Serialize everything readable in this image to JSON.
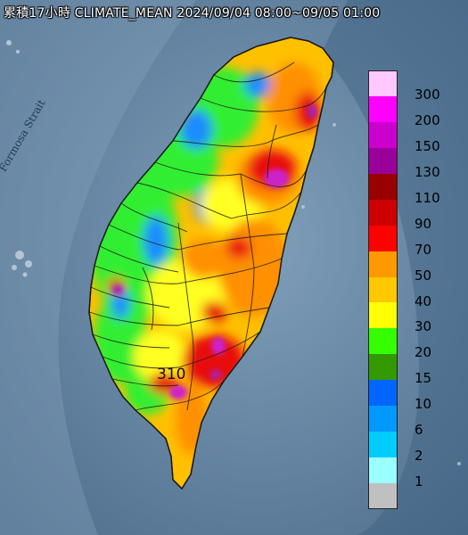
{
  "header": {
    "title": "累積17小時 CLIMATE_MEAN 2024/09/04 08:00~09/05 01:00"
  },
  "map": {
    "strait_label": "Formosa Strait",
    "max_annotation": "310",
    "colors": {
      "sea": "#5f7f9c",
      "land_low": "#3fd84a",
      "land_mid": "#ffc000",
      "land_high": "#ff9a00",
      "peak": "#e01010",
      "extreme": "#cc22cc"
    }
  },
  "legend": {
    "items": [
      {
        "label": "300",
        "color": "#ffc8ff"
      },
      {
        "label": "200",
        "color": "#ff00ff"
      },
      {
        "label": "150",
        "color": "#cc00cc"
      },
      {
        "label": "130",
        "color": "#990099"
      },
      {
        "label": "110",
        "color": "#990000"
      },
      {
        "label": "90",
        "color": "#cc0000"
      },
      {
        "label": "70",
        "color": "#ff0000"
      },
      {
        "label": "50",
        "color": "#ff9900"
      },
      {
        "label": "40",
        "color": "#ffc800"
      },
      {
        "label": "30",
        "color": "#ffff00"
      },
      {
        "label": "20",
        "color": "#33ff00"
      },
      {
        "label": "15",
        "color": "#339900"
      },
      {
        "label": "10",
        "color": "#0066ff"
      },
      {
        "label": "6",
        "color": "#0099ff"
      },
      {
        "label": "2",
        "color": "#00ccff"
      },
      {
        "label": "1",
        "color": "#99ffff"
      },
      {
        "label": "",
        "color": "#c0c0c0"
      }
    ]
  }
}
